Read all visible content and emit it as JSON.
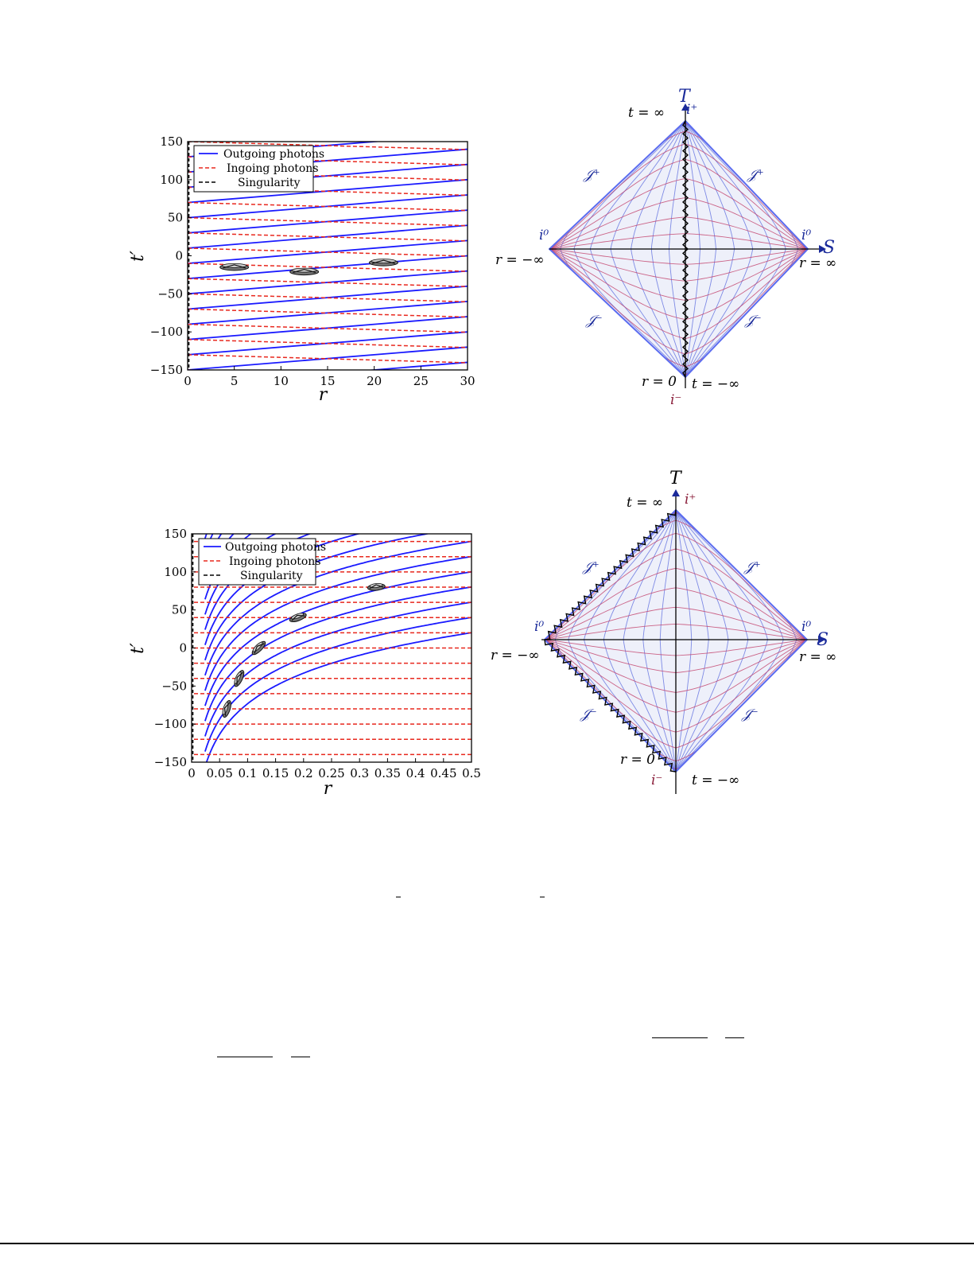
{
  "figures": [
    {
      "id": "top",
      "chart_data": {
        "type": "line",
        "xlabel": "r",
        "ylabel": "t′",
        "xlim": [
          0,
          30
        ],
        "ylim": [
          -150,
          150
        ],
        "xticks": [
          0,
          5,
          10,
          15,
          20,
          25,
          30
        ],
        "yticks": [
          150,
          100,
          50,
          0,
          -50,
          -100,
          -150
        ],
        "legend": {
          "placement": "top-left",
          "entries": [
            "Outgoing photons",
            "Ingoing photons",
            "Singularity"
          ]
        },
        "series": [
          {
            "name": "Outgoing photons",
            "color": "#1a1aff",
            "style": "solid",
            "slope": 1.0,
            "intercepts": [
              -250,
              -230,
              -210,
              -190,
              -170,
              -150,
              -130,
              -110,
              -90,
              -70,
              -50,
              -30,
              -10,
              10,
              30,
              50,
              70,
              90,
              110,
              130,
              150
            ]
          },
          {
            "name": "Ingoing photons",
            "color": "#e8281e",
            "style": "dashed",
            "slope": -0.35,
            "intercepts": [
              -150,
              -130,
              -110,
              -90,
              -70,
              -50,
              -30,
              -10,
              10,
              30,
              50,
              70,
              90,
              110,
              130,
              150,
              170
            ]
          },
          {
            "name": "Singularity",
            "color": "#000000",
            "style": "dashed",
            "x": 0
          }
        ],
        "cones": [
          [
            5,
            -15
          ],
          [
            12.5,
            -21
          ],
          [
            21,
            -9
          ]
        ]
      },
      "penrose": {
        "axis_t": "T",
        "axis_s": "S",
        "labels": [
          "t = ∞",
          "i⁺",
          "𝒥⁺",
          "𝒥⁺",
          "i⁰",
          "i⁰",
          "r = −∞",
          "r = ∞",
          "𝒥⁻",
          "𝒥⁻",
          "r = 0",
          "t = −∞",
          "i⁻"
        ],
        "singularity": "vertical-center"
      }
    },
    {
      "id": "bottom",
      "chart_data": {
        "type": "line",
        "xlabel": "r",
        "ylabel": "t′",
        "xlim": [
          0,
          0.5
        ],
        "ylim": [
          -150,
          150
        ],
        "xticks": [
          0,
          0.05,
          0.1,
          0.15,
          0.2,
          0.25,
          0.3,
          0.35,
          0.4,
          0.45,
          0.5
        ],
        "yticks": [
          150,
          100,
          50,
          0,
          -50,
          -100,
          -150
        ],
        "legend": {
          "placement": "top-left",
          "entries": [
            "Outgoing photons",
            "Ingoing photons",
            "Singularity"
          ]
        },
        "series": [
          {
            "name": "Outgoing photons",
            "color": "#1a1aff",
            "style": "solid",
            "form": "t' = C + K·ln(r/0.03)",
            "K": 58,
            "offsets": [
              0,
              20,
              40,
              60,
              80,
              100,
              120,
              140,
              160,
              180,
              200,
              220,
              240,
              260,
              280,
              300,
              320
            ]
          },
          {
            "name": "Ingoing photons",
            "color": "#e8281e",
            "style": "dashed",
            "form": "t' = const",
            "levels": [
              -140,
              -120,
              -100,
              -80,
              -60,
              -40,
              -20,
              0,
              20,
              40,
              60,
              80,
              100,
              120,
              140
            ]
          },
          {
            "name": "Singularity",
            "color": "#000000",
            "style": "dashed",
            "x": 0
          }
        ],
        "cones": [
          [
            0.33,
            80
          ],
          [
            0.19,
            40
          ],
          [
            0.12,
            0
          ],
          [
            0.085,
            -40
          ],
          [
            0.063,
            -80
          ]
        ]
      },
      "penrose": {
        "axis_t": "T",
        "axis_s": "S",
        "labels": [
          "t = ∞",
          "i⁺",
          "𝒥⁺",
          "𝒥⁺",
          "i⁰",
          "i⁰",
          "r = −∞",
          "r = ∞",
          "𝒥⁻",
          "𝒥⁻",
          "r = 0",
          "i⁻",
          "t = −∞"
        ],
        "singularity": "upper-left-and-lower-left-edges"
      }
    }
  ]
}
